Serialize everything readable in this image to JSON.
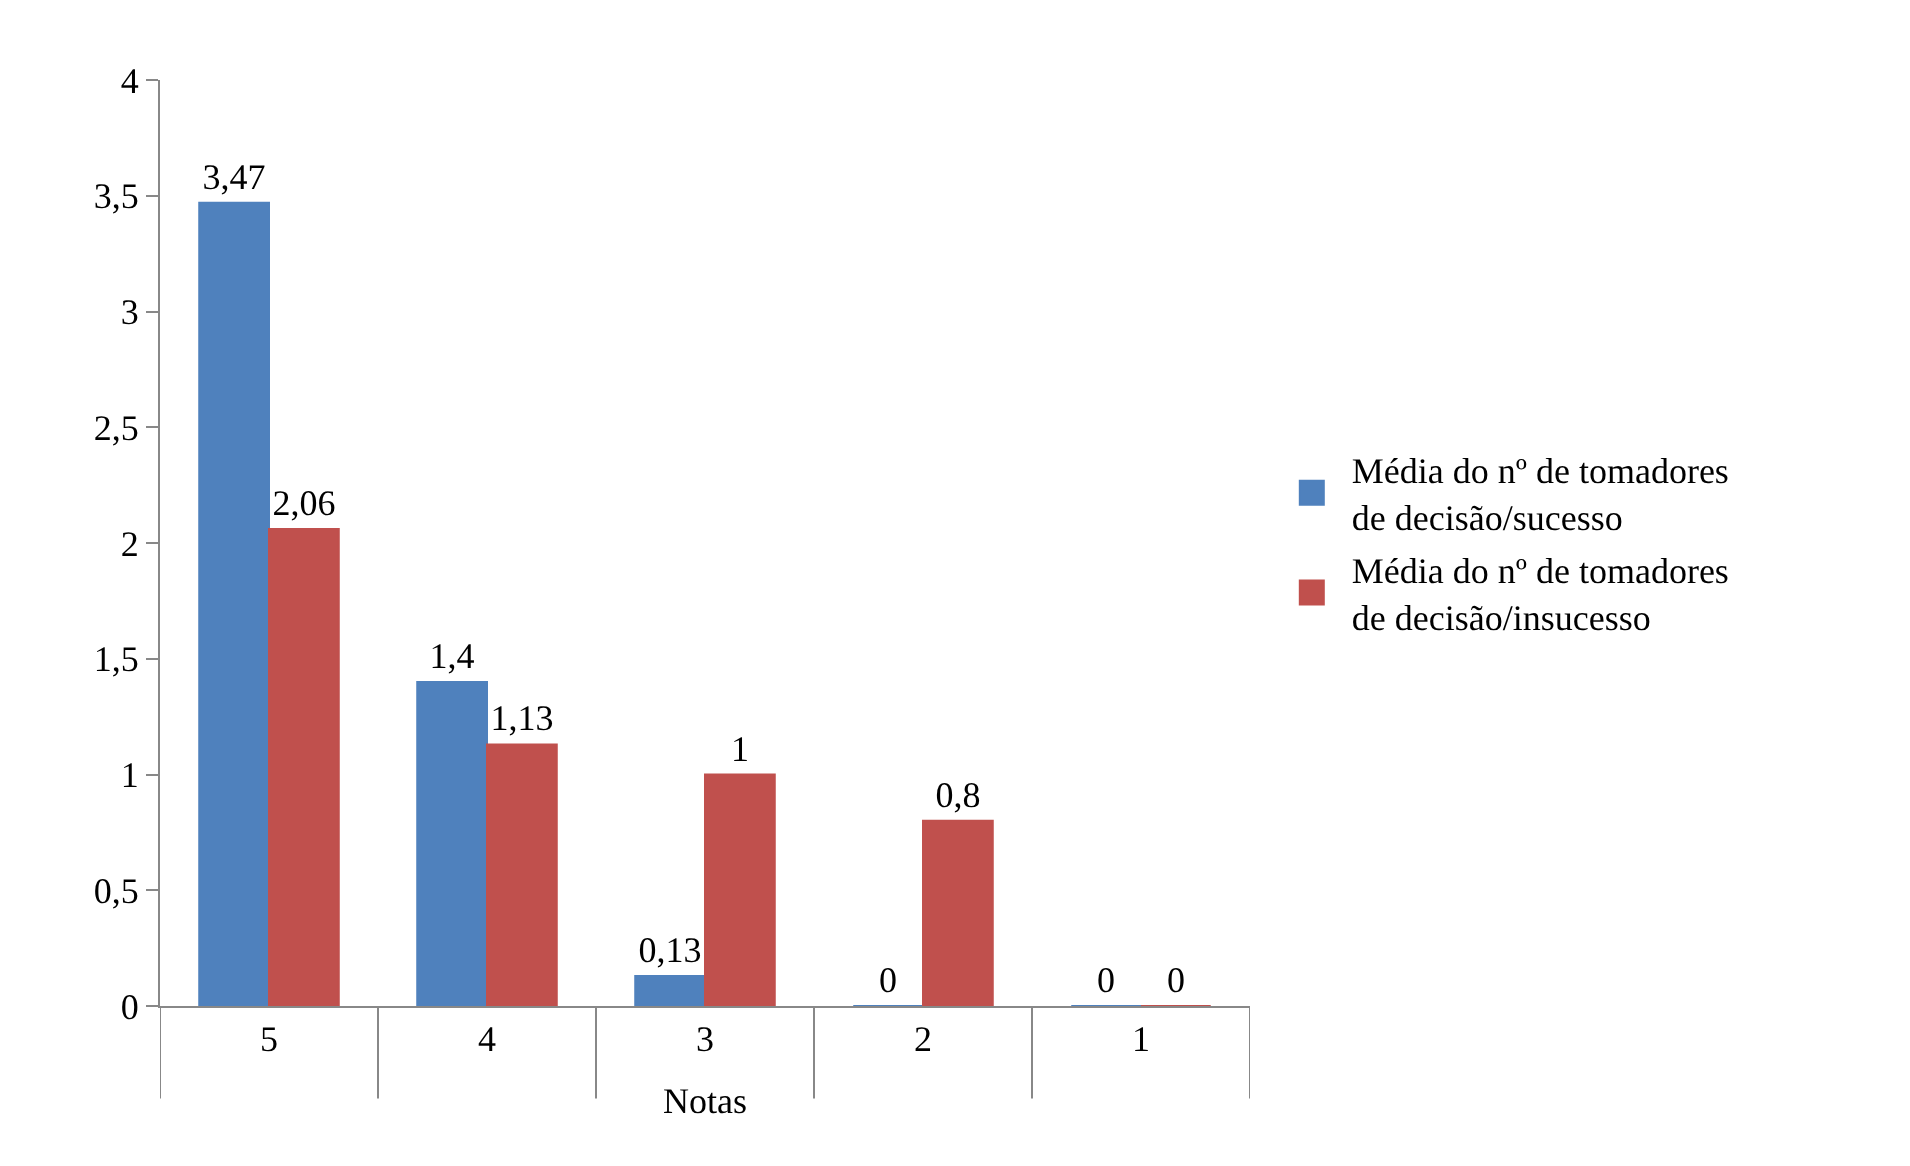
{
  "chart_data": {
    "type": "bar",
    "xlabel": "Notas",
    "categories": [
      "5",
      "4",
      "3",
      "2",
      "1"
    ],
    "series": [
      {
        "name": "Média do nº de tomadores de decisão/sucesso",
        "color": "#4f81bd",
        "values": [
          3.47,
          1.4,
          0.13,
          0,
          0
        ],
        "value_labels": [
          "3,47",
          "1,4",
          "0,13",
          "0",
          "0"
        ]
      },
      {
        "name": "Média do nº de tomadores de decisão/insucesso",
        "color": "#c0504d",
        "values": [
          2.06,
          1.13,
          1,
          0.8,
          0
        ],
        "value_labels": [
          "2,06",
          "1,13",
          "1",
          "0,8",
          "0"
        ]
      }
    ],
    "ylim": [
      0,
      4
    ],
    "yticks": [
      0,
      {
        "value": 0.5,
        "label": "0,5"
      },
      1,
      {
        "value": 1.5,
        "label": "1,5"
      },
      2,
      {
        "value": 2.5,
        "label": "2,5"
      },
      3,
      {
        "value": 3.5,
        "label": "3,5"
      },
      4
    ],
    "legend": "right"
  }
}
